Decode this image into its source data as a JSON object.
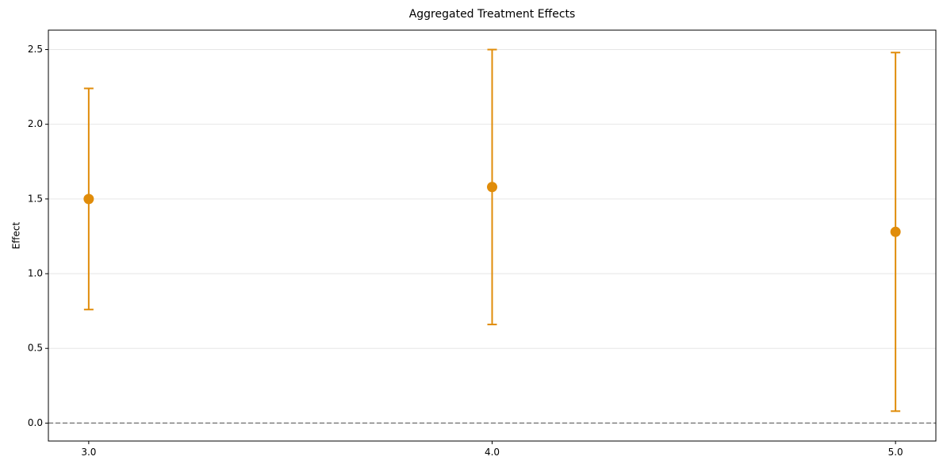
{
  "chart_data": {
    "type": "scatter",
    "title": "Aggregated Treatment Effects",
    "xlabel": "",
    "ylabel": "Effect",
    "x": [
      3.0,
      4.0,
      5.0
    ],
    "x_tick_labels": [
      "3.0",
      "4.0",
      "5.0"
    ],
    "y_ticks": [
      0.0,
      0.5,
      1.0,
      1.5,
      2.0,
      2.5
    ],
    "y_tick_labels": [
      "0.0",
      "0.5",
      "1.0",
      "1.5",
      "2.0",
      "2.5"
    ],
    "xlim": [
      2.9,
      5.1
    ],
    "ylim": [
      -0.12,
      2.63
    ],
    "series": [
      {
        "values": [
          1.5,
          1.58,
          1.28
        ],
        "ci_lower": [
          0.76,
          0.66,
          0.08
        ],
        "ci_upper": [
          2.24,
          2.5,
          2.48
        ],
        "color": "#E08C0A"
      }
    ],
    "reference_line": {
      "y": 0.0,
      "style": "dashed",
      "color": "#808080"
    },
    "grid": {
      "y": true,
      "x": false
    }
  }
}
